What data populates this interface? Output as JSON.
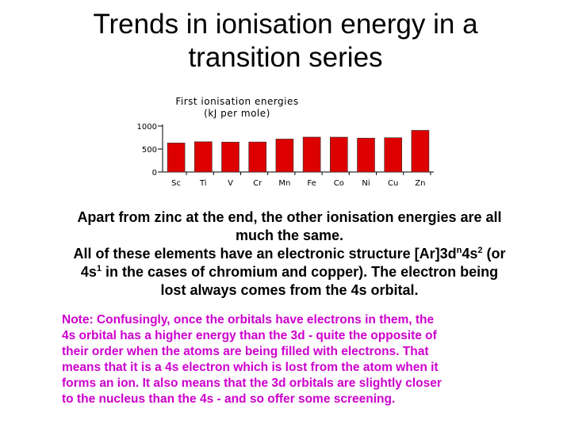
{
  "slide": {
    "title_line1": "Trends in ionisation energy in a",
    "title_line2": "transition series",
    "paragraph": {
      "line1": "Apart from zinc at the end, the other ionisation energies are all",
      "line2": "much the same.",
      "line3_a": "All of these elements have an electronic structure [Ar]3d",
      "line3_sup1": "n",
      "line3_b": "4s",
      "line3_sup2": "2",
      "line3_c": " (or",
      "line4_a": "4s",
      "line4_sup": "1",
      "line4_b": " in the cases of chromium and copper). The electron being",
      "line5": "lost always comes from the 4s orbital."
    },
    "note": "Note:  Confusingly, once the orbitals have electrons in them, the\n4s orbital has a higher energy than the 3d - quite the opposite of\ntheir order when the atoms are being filled with electrons. That\nmeans that it is a 4s electron which is lost from the atom when it\nforms an ion. It also means that the 3d orbitals are slightly closer\nto the nucleus than the 4s - and so offer some screening."
  },
  "chart_data": {
    "type": "bar",
    "title": "First ionisation energies",
    "subtitle": "(kJ per mole)",
    "categories": [
      "Sc",
      "Ti",
      "V",
      "Cr",
      "Mn",
      "Fe",
      "Co",
      "Ni",
      "Cu",
      "Zn"
    ],
    "values": [
      631,
      658,
      650,
      653,
      717,
      759,
      758,
      737,
      746,
      906
    ],
    "yticks": [
      1000,
      500,
      0
    ],
    "ylim": [
      0,
      1000
    ],
    "grid": false,
    "bar_color": "#dd0000"
  }
}
